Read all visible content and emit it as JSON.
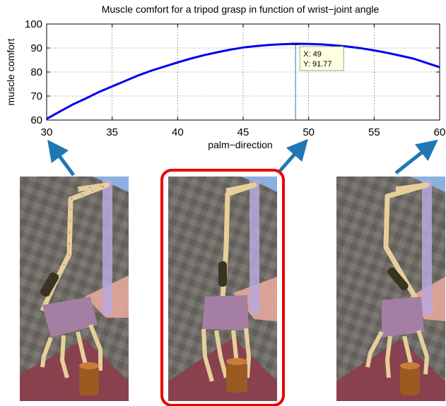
{
  "chart_data": {
    "type": "line",
    "title": "Muscle comfort for a tripod grasp in function of wrist−joint angle",
    "xlabel": "palm−direction",
    "ylabel": "muscle comfort",
    "xlim": [
      30,
      60
    ],
    "ylim": [
      60,
      100
    ],
    "x_ticks": [
      "30",
      "35",
      "40",
      "45",
      "50",
      "55",
      "60"
    ],
    "y_ticks": [
      "60",
      "70",
      "80",
      "90",
      "100"
    ],
    "grid": true,
    "series": [
      {
        "color": "#0000ee",
        "x": [
          30,
          31,
          32,
          33,
          34,
          35,
          36,
          37,
          38,
          39,
          40,
          41,
          42,
          43,
          44,
          45,
          46,
          47,
          48,
          49,
          50,
          51,
          52,
          53,
          54,
          55,
          56,
          57,
          58,
          59,
          60
        ],
        "y": [
          60.5,
          63.5,
          66.5,
          69.0,
          71.7,
          74.0,
          76.3,
          78.6,
          80.6,
          82.3,
          84.0,
          85.6,
          87.0,
          88.2,
          89.3,
          90.2,
          90.8,
          91.3,
          91.6,
          91.77,
          91.7,
          91.5,
          91.1,
          90.6,
          89.9,
          89.0,
          88.0,
          86.8,
          85.6,
          83.8,
          82.0
        ]
      }
    ],
    "datatip": {
      "x": 49,
      "y": 91.77,
      "label_x": "X: 49",
      "label_y": "Y: 91.77"
    }
  },
  "annotations": {
    "highlight_color": "#ee0000",
    "arrow_color": "#1f77b4",
    "selected_panel": "center"
  }
}
